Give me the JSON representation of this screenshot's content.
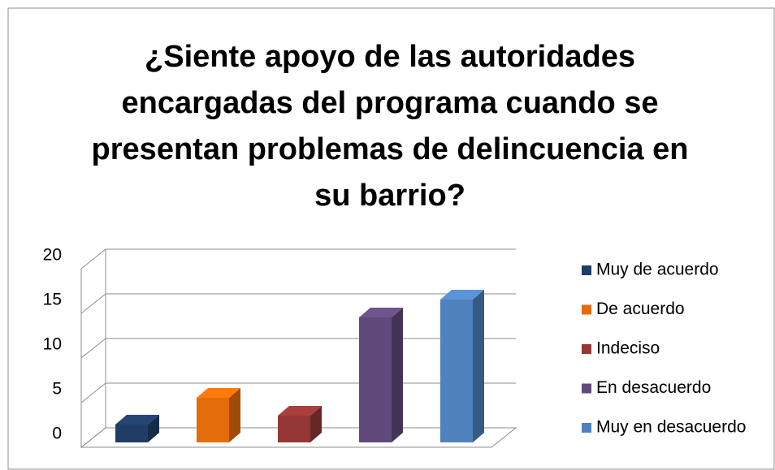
{
  "chart_data": {
    "type": "bar",
    "title": "¿Siente apoyo de las autoridades encargadas del programa cuando se presentan problemas de delincuencia en su barrio?",
    "categories": [
      null
    ],
    "series": [
      {
        "name": "Muy de acuerdo",
        "color": "#1f3d66",
        "values": [
          2
        ]
      },
      {
        "name": "De acuerdo",
        "color": "#e46c0a",
        "values": [
          5
        ]
      },
      {
        "name": "Indeciso",
        "color": "#953735",
        "values": [
          3
        ]
      },
      {
        "name": "En desacuerdo",
        "color": "#604a7b",
        "values": [
          14
        ]
      },
      {
        "name": "Muy en desacuerdo",
        "color": "#4f81bd",
        "values": [
          16
        ]
      }
    ],
    "ylim": [
      0,
      20
    ],
    "yticks": [
      0,
      5,
      10,
      15,
      20
    ],
    "grid": true,
    "legend": "right"
  }
}
